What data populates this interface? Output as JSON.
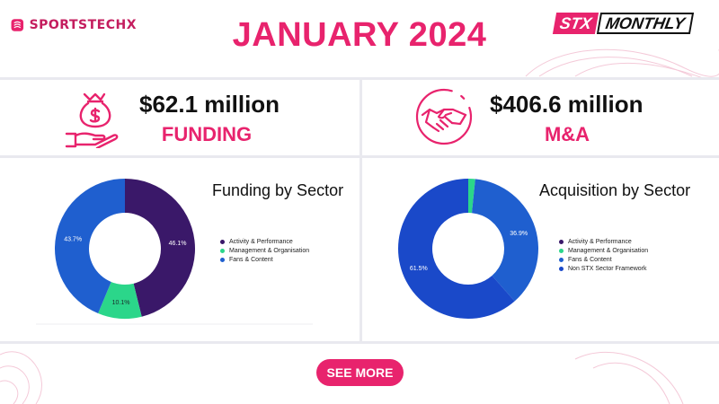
{
  "brand": {
    "name": "SPORTSTECHX"
  },
  "header": {
    "title": "JANUARY 2024"
  },
  "badge": {
    "left": "STX",
    "right": "MONTHLY"
  },
  "funding": {
    "value": "$62.1 million",
    "label": "FUNDING",
    "icon": "money-bag-hand-icon"
  },
  "mna": {
    "value": "$406.6 million",
    "label": "M&A",
    "icon": "handshake-icon"
  },
  "colors": {
    "accent": "#e8236d",
    "activity": "#3a1869",
    "management": "#2bd68a",
    "fans": "#1f5fcf",
    "nonstx": "#1a49c9"
  },
  "cta": {
    "label": "SEE MORE"
  },
  "chart_data": [
    {
      "type": "pie",
      "title": "Funding by Sector",
      "categories": [
        "Activity & Performance",
        "Management & Organisation",
        "Fans & Content"
      ],
      "values": [
        46.1,
        10.1,
        43.7
      ],
      "value_labels": [
        "46.1%",
        "10.1%",
        "43.7%"
      ],
      "colors": [
        "#3a1869",
        "#2bd68a",
        "#1f5fcf"
      ],
      "legend": [
        "Activity & Performance",
        "Management & Organisation",
        "Fans & Content"
      ],
      "legend_position": "right",
      "donut": true
    },
    {
      "type": "pie",
      "title": "Acquisition by Sector",
      "categories": [
        "Activity & Performance",
        "Management & Organisation",
        "Fans & Content",
        "Non STX Sector Framework"
      ],
      "values": [
        0,
        1.6,
        36.9,
        61.5
      ],
      "value_labels": [
        "",
        "",
        "36.9%",
        "61.5%"
      ],
      "colors": [
        "#3a1869",
        "#2bd68a",
        "#1f5fcf",
        "#1a49c9"
      ],
      "legend": [
        "Activity & Performance",
        "Management & Organisation",
        "Fans & Content",
        "Non STX Sector Framework"
      ],
      "legend_position": "right",
      "donut": true
    }
  ]
}
